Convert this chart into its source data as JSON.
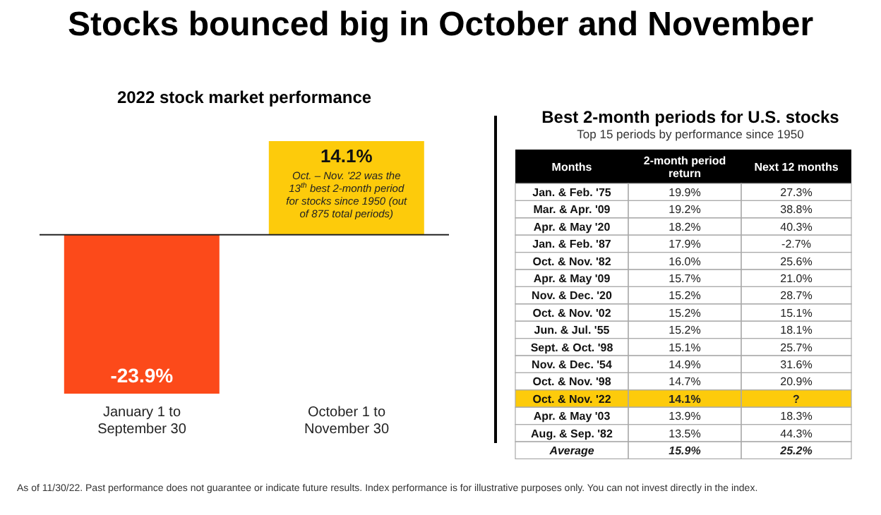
{
  "chart_data": [
    {
      "type": "bar",
      "title": "Stocks bounced big in October and November",
      "subtitle": "2022 stock market performance",
      "categories": [
        "January 1 to September 30",
        "October 1 to November 30"
      ],
      "values": [
        -23.9,
        14.1
      ],
      "colors": [
        "#fc4a1a",
        "#fdcb0b"
      ],
      "value_labels": [
        "-23.9%",
        "14.1%"
      ],
      "annotations": [
        {
          "text": "Oct. – Nov. '22 was the 13$^{th}$ best 2-month period for stocks since 1950 (out of 875 total periods)",
          "x": "October 1 to November 30",
          "y": 14.1
        }
      ]
    },
    {
      "type": "heatmap",
      "title": "Best 2-month periods for U.S. stocks",
      "subtitle": "Top 15 periods by performance since 1950",
      "ylabel": "Months",
      "categories": [
        "2-month period return",
        "Next 12 months"
      ],
      "y_categories": [
        "Jan. & Feb. '75",
        "Mar. & Apr. '09",
        "Apr. & May '20",
        "Jan. & Feb. '87",
        "Oct. & Nov. '82",
        "Apr. & May '09",
        "Nov. & Dec. '20",
        "Oct. & Nov. '02",
        "Jun. & Jul. '55",
        "Sept. & Oct. '98",
        "Nov. & Dec. '54",
        "Oct. & Nov. '98",
        "Oct. & Nov. '22",
        "Apr. & May '03",
        "Aug. & Sep. '82",
        "Average"
      ],
      "cells": [
        [
          19.9,
          27.3
        ],
        [
          19.2,
          38.8
        ],
        [
          18.2,
          40.3
        ],
        [
          17.9,
          -2.7
        ],
        [
          16.0,
          25.6
        ],
        [
          15.7,
          21.0
        ],
        [
          15.2,
          28.7
        ],
        [
          15.2,
          15.1
        ],
        [
          15.2,
          18.1
        ],
        [
          15.1,
          25.7
        ],
        [
          14.9,
          31.6
        ],
        [
          14.7,
          20.9
        ],
        [
          14.1,
          null
        ],
        [
          13.9,
          18.3
        ],
        [
          13.5,
          44.3
        ],
        [
          15.9,
          25.2
        ]
      ],
      "cell_labels": [
        [
          "19.9%",
          "27.3%"
        ],
        [
          "19.2%",
          "38.8%"
        ],
        [
          "18.2%",
          "40.3%"
        ],
        [
          "17.9%",
          "-2.7%"
        ],
        [
          "16.0%",
          "25.6%"
        ],
        [
          "15.7%",
          "21.0%"
        ],
        [
          "15.2%",
          "28.7%"
        ],
        [
          "15.2%",
          "15.1%"
        ],
        [
          "15.2%",
          "18.1%"
        ],
        [
          "15.1%",
          "25.7%"
        ],
        [
          "14.9%",
          "31.6%"
        ],
        [
          "14.7%",
          "20.9%"
        ],
        [
          "14.1%",
          "?"
        ],
        [
          "13.9%",
          "18.3%"
        ],
        [
          "13.5%",
          "44.3%"
        ],
        [
          "15.9%",
          "25.2%"
        ]
      ],
      "bands": [
        {
          "axis": "y",
          "from": "Oct. & Nov. '22",
          "to": "Oct. & Nov. '22",
          "color": "#fdcb0b"
        }
      ],
      "annotations": [
        "As of 11/30/22. Past performance does not guarantee or indicate future results. Index performance is for illustrative purposes only. You can not invest directly in the index."
      ]
    }
  ]
}
